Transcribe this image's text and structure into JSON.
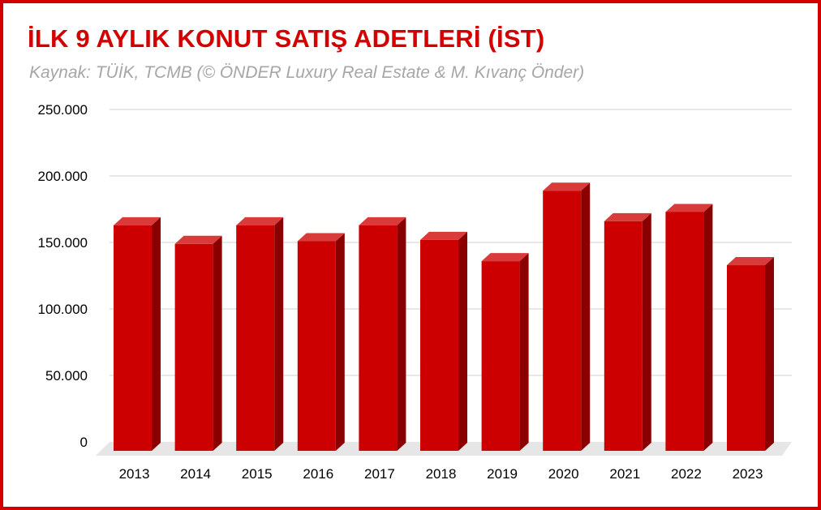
{
  "title": "İLK 9 AYLIK KONUT SATIŞ ADETLERİ (İST)",
  "subtitle": "Kaynak: TÜİK, TCMB (© ÖNDER Luxury Real Estate & M. Kıvanç Önder)",
  "colors": {
    "frame": "#d40000",
    "title": "#d40000",
    "subtitle": "#a6a6a6",
    "bar_front": "#cc0000",
    "bar_top": "#d93a3a",
    "bar_side": "#8a0000",
    "grid": "#d0d0d0",
    "floor": "#e6e6e6"
  },
  "chart_data": {
    "type": "bar",
    "style": "3d-column",
    "categories": [
      "2013",
      "2014",
      "2015",
      "2016",
      "2017",
      "2018",
      "2019",
      "2020",
      "2021",
      "2022",
      "2023"
    ],
    "values": [
      169000,
      155000,
      169000,
      157000,
      169000,
      158000,
      142000,
      195000,
      172000,
      179000,
      139000
    ],
    "ylim": [
      0,
      250000
    ],
    "yticks": [
      0,
      50000,
      100000,
      150000,
      200000,
      250000
    ],
    "ytick_labels": [
      "0",
      "50.000",
      "100.000",
      "150.000",
      "200.000",
      "250.000"
    ],
    "grid": true,
    "legend": "none"
  }
}
